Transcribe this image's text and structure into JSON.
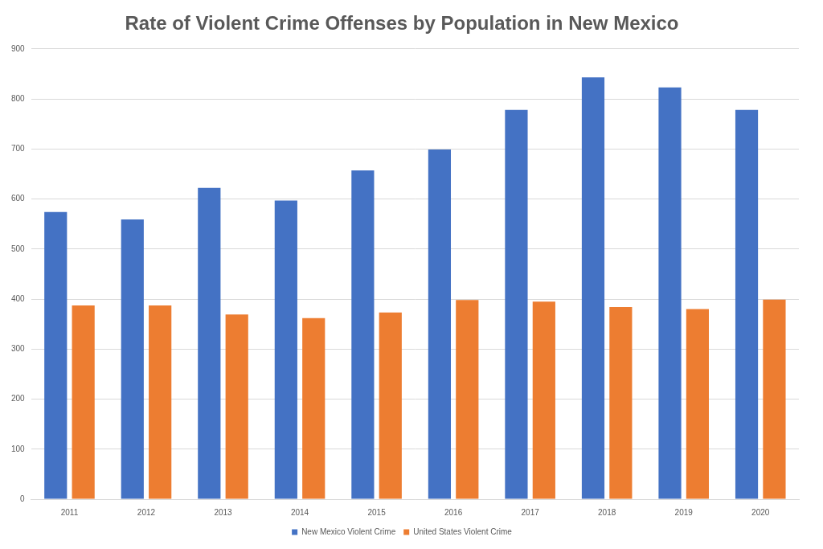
{
  "chart_data": {
    "type": "bar",
    "title": "Rate of Violent Crime Offenses by Population in New Mexico",
    "categories": [
      "2011",
      "2012",
      "2013",
      "2014",
      "2015",
      "2016",
      "2017",
      "2018",
      "2019",
      "2020"
    ],
    "series": [
      {
        "name": "New Mexico Violent Crime",
        "color": "#4472c4",
        "values": [
          574,
          559,
          622,
          597,
          657,
          699,
          778,
          843,
          823,
          778
        ]
      },
      {
        "name": "United States Violent Crime",
        "color": "#ed7d31",
        "values": [
          387,
          387,
          369,
          362,
          373,
          398,
          395,
          384,
          380,
          399
        ]
      }
    ],
    "ylim": [
      0,
      900
    ],
    "yticks": [
      0,
      100,
      200,
      300,
      400,
      500,
      600,
      700,
      800,
      900
    ],
    "grid": true,
    "legend": "bottom"
  }
}
